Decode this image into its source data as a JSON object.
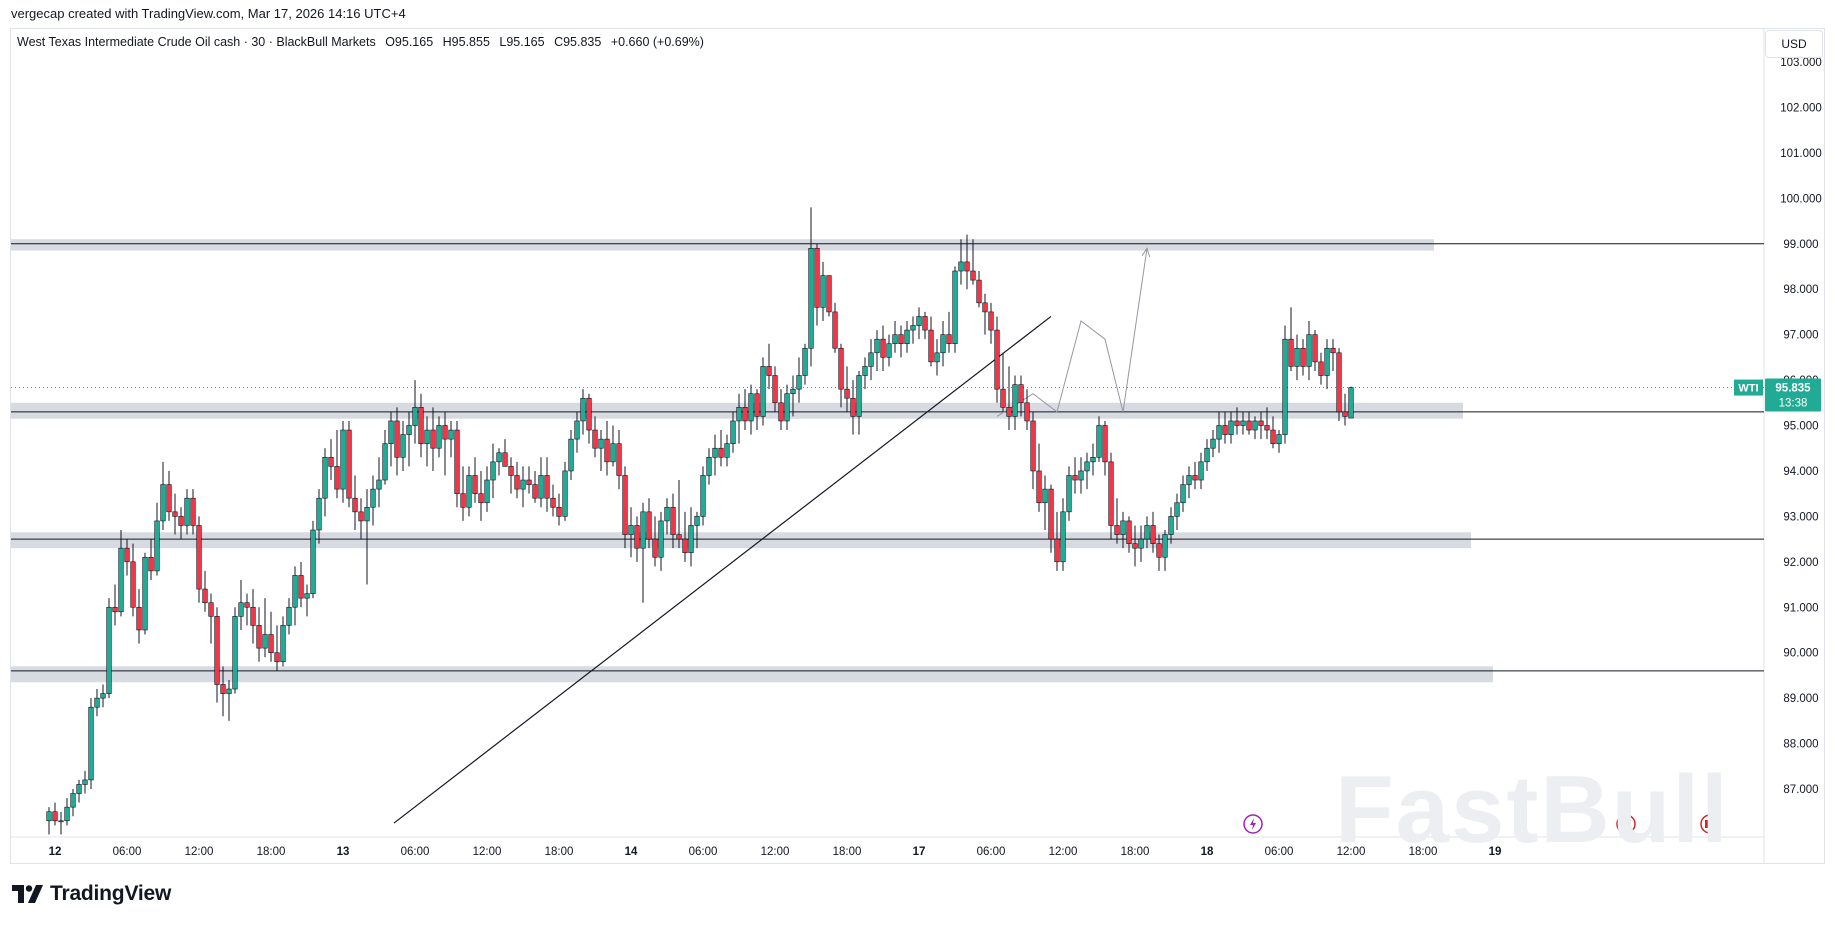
{
  "header": {
    "created_by": "vergecap created with TradingView.com, Mar 17, 2026 14:16 UTC+4"
  },
  "legend": {
    "symbol_text": "West Texas Intermediate Crude Oil cash · 30 · BlackBull Markets",
    "open": "O95.165",
    "high": "H95.855",
    "low": "L95.165",
    "close": "C95.835",
    "change": "+0.660 (+0.69%)"
  },
  "currency": "USD",
  "price_tag": {
    "ticker": "WTI",
    "price": "95.835",
    "countdown": "13:38",
    "color": "#22ab94"
  },
  "brand": {
    "logo_text": "TradingView",
    "watermark": "FastBull"
  },
  "colors": {
    "up": "#22ab94",
    "down": "#f23645",
    "zone_fill": "#d1d4dc",
    "line": "#131722",
    "price_line": "#22ab94",
    "projection": "#9598a1"
  },
  "chart_data": {
    "type": "candlestick",
    "title": "West Texas Intermediate Crude Oil cash",
    "interval": "30",
    "y_axis": {
      "ylim": [
        86.2,
        103.6
      ],
      "ticks": [
        "87.000",
        "88.000",
        "89.000",
        "90.000",
        "91.000",
        "92.000",
        "93.000",
        "94.000",
        "95.000",
        "96.000",
        "97.000",
        "98.000",
        "99.000",
        "100.000",
        "101.000",
        "102.000",
        "103.000"
      ]
    },
    "x_axis": {
      "ticks": [
        {
          "i": 1,
          "label": "12"
        },
        {
          "i": 13,
          "label": "06:00"
        },
        {
          "i": 25,
          "label": "12:00"
        },
        {
          "i": 37,
          "label": "18:00"
        },
        {
          "i": 49,
          "label": "13"
        },
        {
          "i": 61,
          "label": "06:00"
        },
        {
          "i": 73,
          "label": "12:00"
        },
        {
          "i": 85,
          "label": "18:00"
        },
        {
          "i": 97,
          "label": "14"
        },
        {
          "i": 109,
          "label": "06:00"
        },
        {
          "i": 121,
          "label": "12:00"
        },
        {
          "i": 133,
          "label": "18:00"
        },
        {
          "i": 145,
          "label": "17"
        },
        {
          "i": 157,
          "label": "06:00"
        },
        {
          "i": 169,
          "label": "12:00"
        },
        {
          "i": 181,
          "label": "18:00"
        },
        {
          "i": 193,
          "label": "18"
        },
        {
          "i": 205,
          "label": "06:00"
        },
        {
          "i": 217,
          "label": "12:00"
        },
        {
          "i": 229,
          "label": "18:00"
        },
        {
          "i": 241,
          "label": "19"
        }
      ]
    },
    "candles": [
      [
        86.3,
        86.6,
        86.0,
        86.5
      ],
      [
        86.5,
        86.7,
        86.2,
        86.3
      ],
      [
        86.3,
        86.5,
        86.0,
        86.3
      ],
      [
        86.3,
        86.8,
        86.2,
        86.6
      ],
      [
        86.6,
        87.0,
        86.4,
        86.9
      ],
      [
        86.9,
        87.2,
        86.7,
        87.1
      ],
      [
        87.1,
        87.4,
        86.9,
        87.2
      ],
      [
        87.2,
        89.0,
        87.0,
        88.8
      ],
      [
        88.8,
        89.2,
        88.6,
        89.0
      ],
      [
        89.0,
        89.3,
        88.8,
        89.1
      ],
      [
        89.1,
        91.2,
        89.0,
        91.0
      ],
      [
        91.0,
        91.5,
        90.6,
        90.9
      ],
      [
        90.9,
        92.7,
        90.8,
        92.3
      ],
      [
        92.3,
        92.5,
        91.7,
        92.0
      ],
      [
        92.0,
        92.4,
        90.8,
        91.0
      ],
      [
        91.0,
        91.4,
        90.2,
        90.5
      ],
      [
        90.5,
        92.2,
        90.4,
        92.1
      ],
      [
        92.1,
        92.5,
        91.6,
        91.8
      ],
      [
        91.8,
        93.3,
        91.7,
        92.9
      ],
      [
        92.9,
        94.2,
        92.7,
        93.7
      ],
      [
        93.7,
        94.0,
        92.9,
        93.1
      ],
      [
        93.1,
        93.5,
        92.6,
        93.0
      ],
      [
        93.0,
        93.2,
        92.5,
        92.8
      ],
      [
        92.8,
        93.6,
        92.6,
        93.4
      ],
      [
        93.4,
        93.6,
        92.6,
        92.8
      ],
      [
        92.8,
        93.0,
        91.1,
        91.4
      ],
      [
        91.4,
        91.8,
        90.9,
        91.1
      ],
      [
        91.1,
        91.3,
        90.2,
        90.8
      ],
      [
        90.8,
        91.0,
        88.9,
        89.3
      ],
      [
        89.3,
        89.7,
        88.6,
        89.1
      ],
      [
        89.1,
        89.4,
        88.5,
        89.2
      ],
      [
        89.2,
        91.0,
        89.1,
        90.8
      ],
      [
        90.8,
        91.6,
        90.5,
        91.1
      ],
      [
        91.1,
        91.3,
        90.6,
        91.0
      ],
      [
        91.0,
        91.4,
        90.2,
        90.6
      ],
      [
        90.6,
        91.0,
        89.8,
        90.1
      ],
      [
        90.1,
        91.2,
        89.9,
        90.4
      ],
      [
        90.4,
        90.9,
        89.8,
        90.0
      ],
      [
        90.0,
        90.6,
        89.6,
        89.8
      ],
      [
        89.8,
        90.8,
        89.7,
        90.6
      ],
      [
        90.6,
        91.2,
        90.4,
        91.0
      ],
      [
        91.0,
        91.9,
        90.6,
        91.7
      ],
      [
        91.7,
        92.0,
        91.0,
        91.2
      ],
      [
        91.2,
        91.5,
        90.8,
        91.3
      ],
      [
        91.3,
        92.9,
        91.2,
        92.7
      ],
      [
        92.7,
        93.6,
        92.4,
        93.4
      ],
      [
        93.4,
        94.5,
        93.0,
        94.3
      ],
      [
        94.3,
        94.7,
        93.8,
        94.1
      ],
      [
        94.1,
        94.9,
        93.4,
        93.6
      ],
      [
        93.6,
        95.1,
        93.3,
        94.9
      ],
      [
        94.9,
        95.1,
        93.2,
        93.4
      ],
      [
        93.4,
        93.9,
        92.7,
        93.1
      ],
      [
        93.1,
        93.4,
        92.5,
        92.9
      ],
      [
        92.9,
        93.6,
        91.5,
        93.2
      ],
      [
        93.2,
        93.9,
        92.8,
        93.6
      ],
      [
        93.6,
        94.3,
        93.2,
        93.8
      ],
      [
        93.8,
        94.9,
        93.7,
        94.6
      ],
      [
        94.6,
        95.3,
        94.1,
        95.1
      ],
      [
        95.1,
        95.4,
        93.9,
        94.3
      ],
      [
        94.3,
        95.1,
        94.0,
        94.8
      ],
      [
        94.8,
        95.3,
        94.1,
        95.0
      ],
      [
        95.0,
        96.0,
        94.6,
        95.4
      ],
      [
        95.4,
        95.7,
        94.3,
        94.6
      ],
      [
        94.6,
        95.2,
        94.1,
        94.9
      ],
      [
        94.9,
        95.4,
        94.0,
        94.5
      ],
      [
        94.5,
        95.2,
        94.3,
        95.0
      ],
      [
        95.0,
        95.3,
        93.9,
        94.7
      ],
      [
        94.7,
        95.1,
        94.3,
        94.9
      ],
      [
        94.9,
        95.1,
        93.2,
        93.5
      ],
      [
        93.5,
        94.1,
        92.9,
        93.2
      ],
      [
        93.2,
        94.1,
        93.0,
        93.9
      ],
      [
        93.9,
        94.3,
        93.3,
        93.5
      ],
      [
        93.5,
        94.0,
        92.9,
        93.3
      ],
      [
        93.3,
        94.1,
        93.1,
        93.8
      ],
      [
        93.8,
        94.6,
        93.4,
        94.2
      ],
      [
        94.2,
        94.5,
        93.9,
        94.4
      ],
      [
        94.4,
        94.7,
        94.1,
        94.1
      ],
      [
        94.1,
        94.3,
        93.5,
        93.9
      ],
      [
        93.9,
        94.2,
        93.4,
        93.6
      ],
      [
        93.6,
        94.1,
        93.2,
        93.8
      ],
      [
        93.8,
        94.1,
        93.5,
        93.7
      ],
      [
        93.7,
        94.0,
        93.3,
        93.4
      ],
      [
        93.4,
        94.3,
        93.2,
        93.9
      ],
      [
        93.9,
        94.3,
        93.1,
        93.4
      ],
      [
        93.4,
        93.7,
        93.0,
        93.2
      ],
      [
        93.2,
        93.5,
        92.8,
        93.0
      ],
      [
        93.0,
        94.2,
        92.9,
        94.0
      ],
      [
        94.0,
        94.9,
        93.8,
        94.7
      ],
      [
        94.7,
        95.3,
        94.4,
        95.1
      ],
      [
        95.1,
        95.8,
        94.8,
        95.6
      ],
      [
        95.6,
        95.7,
        94.6,
        94.9
      ],
      [
        94.9,
        95.2,
        94.3,
        94.5
      ],
      [
        94.5,
        94.9,
        94.0,
        94.7
      ],
      [
        94.7,
        95.1,
        93.9,
        94.2
      ],
      [
        94.2,
        95.0,
        94.1,
        94.6
      ],
      [
        94.6,
        94.9,
        93.6,
        93.9
      ],
      [
        93.9,
        94.1,
        92.3,
        92.6
      ],
      [
        92.6,
        93.2,
        92.1,
        92.8
      ],
      [
        92.8,
        93.0,
        92.0,
        92.3
      ],
      [
        92.3,
        93.3,
        91.1,
        93.1
      ],
      [
        93.1,
        93.4,
        92.3,
        92.5
      ],
      [
        92.5,
        93.0,
        91.9,
        92.1
      ],
      [
        92.1,
        93.1,
        91.8,
        92.9
      ],
      [
        92.9,
        93.4,
        92.6,
        93.2
      ],
      [
        93.2,
        93.5,
        92.3,
        92.6
      ],
      [
        92.6,
        93.8,
        92.3,
        92.5
      ],
      [
        92.5,
        93.1,
        92.0,
        92.2
      ],
      [
        92.2,
        93.2,
        91.9,
        92.8
      ],
      [
        92.8,
        93.1,
        92.3,
        93.0
      ],
      [
        93.0,
        94.1,
        92.8,
        93.9
      ],
      [
        93.9,
        94.5,
        93.7,
        94.3
      ],
      [
        94.3,
        94.8,
        93.9,
        94.5
      ],
      [
        94.5,
        94.9,
        94.1,
        94.3
      ],
      [
        94.3,
        94.8,
        94.1,
        94.6
      ],
      [
        94.6,
        95.3,
        94.4,
        95.1
      ],
      [
        95.1,
        95.7,
        94.6,
        95.4
      ],
      [
        95.4,
        95.8,
        94.9,
        95.1
      ],
      [
        95.1,
        95.9,
        94.8,
        95.7
      ],
      [
        95.7,
        95.8,
        94.9,
        95.2
      ],
      [
        95.2,
        96.5,
        95.0,
        96.3
      ],
      [
        96.3,
        96.8,
        95.8,
        96.1
      ],
      [
        96.1,
        96.3,
        95.3,
        95.5
      ],
      [
        95.5,
        95.8,
        94.9,
        95.1
      ],
      [
        95.1,
        95.9,
        94.9,
        95.7
      ],
      [
        95.7,
        96.1,
        95.2,
        95.8
      ],
      [
        95.8,
        96.5,
        95.5,
        96.1
      ],
      [
        96.1,
        96.8,
        95.9,
        96.7
      ],
      [
        96.7,
        99.8,
        96.3,
        98.9
      ],
      [
        98.9,
        99.0,
        97.2,
        97.6
      ],
      [
        97.6,
        98.6,
        97.3,
        98.3
      ],
      [
        98.3,
        98.3,
        97.4,
        97.5
      ],
      [
        97.5,
        97.7,
        96.6,
        96.7
      ],
      [
        96.7,
        96.8,
        95.4,
        95.8
      ],
      [
        95.8,
        96.3,
        95.3,
        95.6
      ],
      [
        95.6,
        96.0,
        94.8,
        95.2
      ],
      [
        95.2,
        96.2,
        94.8,
        96.1
      ],
      [
        96.1,
        96.5,
        95.8,
        96.3
      ],
      [
        96.3,
        96.9,
        96.0,
        96.6
      ],
      [
        96.6,
        97.1,
        96.2,
        96.9
      ],
      [
        96.9,
        97.2,
        96.2,
        96.5
      ],
      [
        96.5,
        97.0,
        96.3,
        96.8
      ],
      [
        96.8,
        97.3,
        96.6,
        97.0
      ],
      [
        97.0,
        97.2,
        96.5,
        96.8
      ],
      [
        96.8,
        97.3,
        96.6,
        97.1
      ],
      [
        97.1,
        97.4,
        96.8,
        97.2
      ],
      [
        97.2,
        97.6,
        96.9,
        97.4
      ],
      [
        97.4,
        97.5,
        96.9,
        97.1
      ],
      [
        97.1,
        97.4,
        96.3,
        96.4
      ],
      [
        96.4,
        96.9,
        96.1,
        96.6
      ],
      [
        96.6,
        97.3,
        96.3,
        97.0
      ],
      [
        97.0,
        97.5,
        96.6,
        96.8
      ],
      [
        96.8,
        98.5,
        96.6,
        98.4
      ],
      [
        98.4,
        99.1,
        98.1,
        98.6
      ],
      [
        98.6,
        99.2,
        98.0,
        98.4
      ],
      [
        98.4,
        99.1,
        98.1,
        98.2
      ],
      [
        98.2,
        98.4,
        97.6,
        97.7
      ],
      [
        97.7,
        97.9,
        97.0,
        97.5
      ],
      [
        97.5,
        97.7,
        96.8,
        97.1
      ],
      [
        97.1,
        97.4,
        95.5,
        95.8
      ],
      [
        95.8,
        96.6,
        95.3,
        95.4
      ],
      [
        95.4,
        96.3,
        94.9,
        95.2
      ],
      [
        95.2,
        96.1,
        94.9,
        95.9
      ],
      [
        95.9,
        96.1,
        95.2,
        95.5
      ],
      [
        95.5,
        95.8,
        94.9,
        95.1
      ],
      [
        95.1,
        95.3,
        93.6,
        94.0
      ],
      [
        94.0,
        94.6,
        93.1,
        93.3
      ],
      [
        93.3,
        93.9,
        92.7,
        93.6
      ],
      [
        93.6,
        93.7,
        92.2,
        92.5
      ],
      [
        92.5,
        93.1,
        91.8,
        92.0
      ],
      [
        92.0,
        93.4,
        91.8,
        93.1
      ],
      [
        93.1,
        94.1,
        92.9,
        93.9
      ],
      [
        93.9,
        94.3,
        93.5,
        93.8
      ],
      [
        93.8,
        94.3,
        93.5,
        94.0
      ],
      [
        94.0,
        94.4,
        93.6,
        94.2
      ],
      [
        94.2,
        94.6,
        93.9,
        94.3
      ],
      [
        94.3,
        95.2,
        94.2,
        95.0
      ],
      [
        95.0,
        95.1,
        93.9,
        94.2
      ],
      [
        94.2,
        94.4,
        92.5,
        92.8
      ],
      [
        92.8,
        93.4,
        92.4,
        92.6
      ],
      [
        92.6,
        93.1,
        92.3,
        92.9
      ],
      [
        92.9,
        93.0,
        92.2,
        92.4
      ],
      [
        92.4,
        92.8,
        91.9,
        92.3
      ],
      [
        92.3,
        92.8,
        92.0,
        92.5
      ],
      [
        92.5,
        93.0,
        92.3,
        92.8
      ],
      [
        92.8,
        93.1,
        92.2,
        92.4
      ],
      [
        92.4,
        92.6,
        91.8,
        92.1
      ],
      [
        92.1,
        92.7,
        91.8,
        92.6
      ],
      [
        92.6,
        93.2,
        92.4,
        93.0
      ],
      [
        93.0,
        93.5,
        92.7,
        93.3
      ],
      [
        93.3,
        93.9,
        93.1,
        93.7
      ],
      [
        93.7,
        94.1,
        93.4,
        93.9
      ],
      [
        93.9,
        94.2,
        93.6,
        93.8
      ],
      [
        93.8,
        94.4,
        93.6,
        94.2
      ],
      [
        94.2,
        94.7,
        94.0,
        94.5
      ],
      [
        94.5,
        94.9,
        94.3,
        94.7
      ],
      [
        94.7,
        95.3,
        94.4,
        95.0
      ],
      [
        95.0,
        95.3,
        94.6,
        94.8
      ],
      [
        94.8,
        95.3,
        94.6,
        95.1
      ],
      [
        95.1,
        95.4,
        94.8,
        95.0
      ],
      [
        95.0,
        95.3,
        94.8,
        95.1
      ],
      [
        95.1,
        95.3,
        94.8,
        94.9
      ],
      [
        94.9,
        95.2,
        94.7,
        95.1
      ],
      [
        95.1,
        95.3,
        94.7,
        95.0
      ],
      [
        95.0,
        95.4,
        94.7,
        94.9
      ],
      [
        94.9,
        95.2,
        94.5,
        94.6
      ],
      [
        94.6,
        94.9,
        94.4,
        94.8
      ],
      [
        94.8,
        97.2,
        94.6,
        96.9
      ],
      [
        96.9,
        97.6,
        96.2,
        96.3
      ],
      [
        96.3,
        97.0,
        96.0,
        96.7
      ],
      [
        96.7,
        96.9,
        96.1,
        96.3
      ],
      [
        96.3,
        97.3,
        96.0,
        97.0
      ],
      [
        97.0,
        97.1,
        96.2,
        96.4
      ],
      [
        96.4,
        96.6,
        95.9,
        96.1
      ],
      [
        96.1,
        96.9,
        95.8,
        96.7
      ],
      [
        96.7,
        96.9,
        96.2,
        96.6
      ],
      [
        96.6,
        96.7,
        95.1,
        95.3
      ],
      [
        95.3,
        95.7,
        95.0,
        95.2
      ],
      [
        95.165,
        95.855,
        95.165,
        95.835
      ]
    ],
    "zones": [
      {
        "y1": 98.85,
        "y2": 99.1,
        "line": 99.0
      },
      {
        "y1": 95.15,
        "y2": 95.5,
        "line": 95.3
      },
      {
        "y1": 92.3,
        "y2": 92.65,
        "line": 92.5
      },
      {
        "y1": 89.35,
        "y2": 89.7,
        "line": 89.6
      }
    ],
    "trendline": {
      "start": [
        57.5,
        86.25
      ],
      "end": [
        167,
        97.4
      ]
    },
    "projection": [
      [
        158,
        95.2
      ],
      [
        164,
        95.7
      ],
      [
        168,
        95.3
      ],
      [
        172,
        97.3
      ],
      [
        176,
        96.9
      ],
      [
        179,
        95.3
      ],
      [
        183,
        98.9
      ]
    ],
    "last_price": 95.835
  }
}
